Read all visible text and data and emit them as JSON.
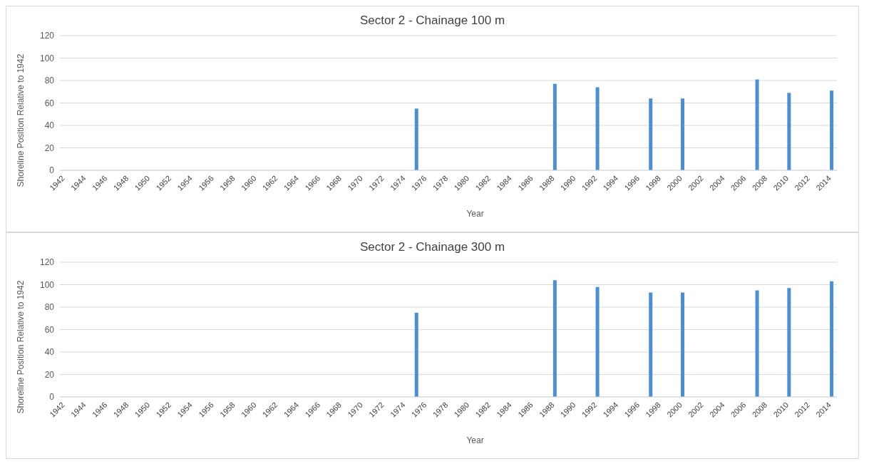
{
  "chart_data": [
    {
      "type": "bar",
      "title": "Sector 2 - Chainage 100 m",
      "xlabel": "Year",
      "ylabel": "Shoreline Position Relative  to 1942",
      "categories": [
        "1942",
        null,
        "1944",
        null,
        "1946",
        null,
        "1948",
        null,
        "1950",
        null,
        "1952",
        null,
        "1954",
        null,
        "1956",
        null,
        "1958",
        null,
        "1960",
        null,
        "1962",
        null,
        "1964",
        null,
        "1966",
        null,
        "1968",
        null,
        "1970",
        null,
        "1972",
        null,
        "1974",
        null,
        "1976",
        null,
        "1978",
        null,
        "1980",
        null,
        "1982",
        null,
        "1984",
        null,
        "1986",
        null,
        "1988",
        null,
        "1990",
        null,
        "1992",
        null,
        "1994",
        null,
        "1996",
        null,
        "1998",
        null,
        "2000",
        null,
        "2002",
        null,
        "2004",
        null,
        "2006",
        null,
        "2008",
        null,
        "2010",
        null,
        "2012",
        null,
        "2014"
      ],
      "values": [
        null,
        null,
        null,
        null,
        null,
        null,
        null,
        null,
        null,
        null,
        null,
        null,
        null,
        null,
        null,
        null,
        null,
        null,
        null,
        null,
        null,
        null,
        null,
        null,
        null,
        null,
        null,
        null,
        null,
        null,
        null,
        null,
        null,
        55,
        null,
        null,
        null,
        null,
        null,
        null,
        null,
        null,
        null,
        null,
        null,
        null,
        77,
        null,
        null,
        null,
        74,
        null,
        null,
        null,
        null,
        64,
        null,
        null,
        64,
        null,
        null,
        null,
        null,
        null,
        null,
        81,
        null,
        null,
        69,
        null,
        null,
        null,
        71
      ],
      "color": "#4a8fd3",
      "ylim": [
        0,
        120
      ],
      "yticks": [
        0,
        20,
        40,
        60,
        80,
        100,
        120
      ],
      "grid": "y"
    },
    {
      "type": "bar",
      "title": "Sector 2 - Chainage 300 m",
      "xlabel": "Year",
      "ylabel": "Shoreline Position Relative  to 1942",
      "categories": [
        "1942",
        null,
        "1944",
        null,
        "1946",
        null,
        "1948",
        null,
        "1950",
        null,
        "1952",
        null,
        "1954",
        null,
        "1956",
        null,
        "1958",
        null,
        "1960",
        null,
        "1962",
        null,
        "1964",
        null,
        "1966",
        null,
        "1968",
        null,
        "1970",
        null,
        "1972",
        null,
        "1974",
        null,
        "1976",
        null,
        "1978",
        null,
        "1980",
        null,
        "1982",
        null,
        "1984",
        null,
        "1986",
        null,
        "1988",
        null,
        "1990",
        null,
        "1992",
        null,
        "1994",
        null,
        "1996",
        null,
        "1998",
        null,
        "2000",
        null,
        "2002",
        null,
        "2004",
        null,
        "2006",
        null,
        "2008",
        null,
        "2010",
        null,
        "2012",
        null,
        "2014"
      ],
      "values": [
        null,
        null,
        null,
        null,
        null,
        null,
        null,
        null,
        null,
        null,
        null,
        null,
        null,
        null,
        null,
        null,
        null,
        null,
        null,
        null,
        null,
        null,
        null,
        null,
        null,
        null,
        null,
        null,
        null,
        null,
        null,
        null,
        null,
        75,
        null,
        null,
        null,
        null,
        null,
        null,
        null,
        null,
        null,
        null,
        null,
        null,
        104,
        null,
        null,
        null,
        98,
        null,
        null,
        null,
        null,
        93,
        null,
        null,
        93,
        null,
        null,
        null,
        null,
        null,
        null,
        95,
        null,
        null,
        97,
        null,
        null,
        null,
        103
      ],
      "color": "#4a8fd3",
      "ylim": [
        0,
        120
      ],
      "yticks": [
        0,
        20,
        40,
        60,
        80,
        100,
        120
      ],
      "grid": "y"
    }
  ]
}
